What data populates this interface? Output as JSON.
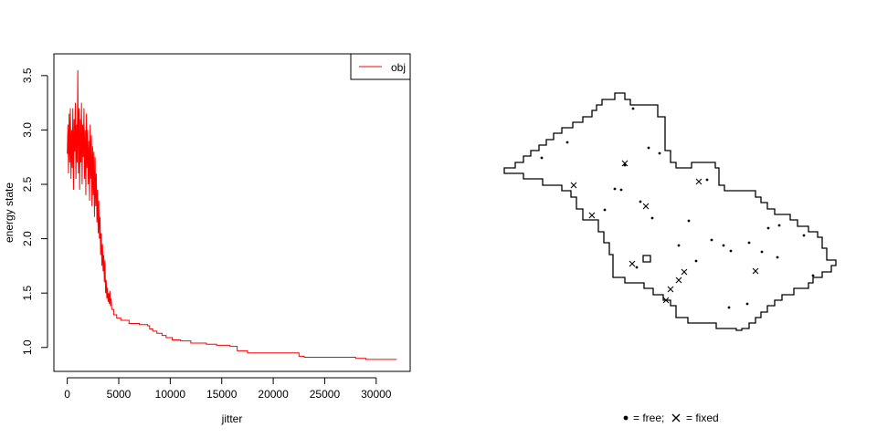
{
  "chart_data": [
    {
      "type": "line",
      "title": "",
      "xlabel": "jitter",
      "ylabel": "energy state",
      "xlim": [
        -1300,
        33300
      ],
      "ylim": [
        0.78,
        3.7
      ],
      "xticks": [
        0,
        5000,
        10000,
        15000,
        20000,
        25000,
        30000
      ],
      "yticks": [
        1.0,
        1.5,
        2.0,
        2.5,
        3.0,
        3.5
      ],
      "grid": false,
      "legend": {
        "position": "top-right",
        "entries": [
          "obj"
        ]
      },
      "series": [
        {
          "name": "obj",
          "color": "#ff0000",
          "noisy_segment": [
            [
              0,
              2.78
            ],
            [
              60,
              3.05
            ],
            [
              120,
              2.6
            ],
            [
              180,
              3.15
            ],
            [
              240,
              2.7
            ],
            [
              300,
              3.2
            ],
            [
              360,
              2.55
            ],
            [
              420,
              3.0
            ],
            [
              480,
              2.65
            ],
            [
              540,
              3.2
            ],
            [
              600,
              2.45
            ],
            [
              660,
              3.1
            ],
            [
              720,
              2.8
            ],
            [
              780,
              3.25
            ],
            [
              840,
              2.55
            ],
            [
              900,
              3.05
            ],
            [
              960,
              2.7
            ],
            [
              1020,
              3.55
            ],
            [
              1080,
              2.6
            ],
            [
              1140,
              3.2
            ],
            [
              1200,
              2.45
            ],
            [
              1260,
              3.1
            ],
            [
              1320,
              2.7
            ],
            [
              1380,
              3.25
            ],
            [
              1440,
              2.5
            ],
            [
              1500,
              3.05
            ],
            [
              1560,
              2.75
            ],
            [
              1620,
              3.2
            ],
            [
              1680,
              2.55
            ],
            [
              1740,
              3.0
            ],
            [
              1800,
              2.4
            ],
            [
              1860,
              3.15
            ],
            [
              1920,
              2.65
            ],
            [
              1980,
              3.0
            ],
            [
              2040,
              2.5
            ],
            [
              2100,
              2.9
            ],
            [
              2160,
              2.35
            ],
            [
              2220,
              3.05
            ],
            [
              2280,
              2.55
            ],
            [
              2340,
              2.95
            ],
            [
              2400,
              2.3
            ],
            [
              2460,
              2.85
            ],
            [
              2520,
              2.4
            ],
            [
              2580,
              2.8
            ],
            [
              2640,
              2.2
            ],
            [
              2700,
              2.75
            ],
            [
              2760,
              2.3
            ],
            [
              2820,
              2.6
            ],
            [
              2880,
              2.15
            ],
            [
              2940,
              2.45
            ],
            [
              3000,
              2.05
            ],
            [
              3060,
              2.35
            ],
            [
              3120,
              2.0
            ],
            [
              3180,
              2.2
            ],
            [
              3240,
              1.85
            ],
            [
              3300,
              2.05
            ],
            [
              3360,
              1.75
            ],
            [
              3420,
              1.95
            ],
            [
              3480,
              1.7
            ],
            [
              3540,
              1.85
            ],
            [
              3600,
              1.6
            ],
            [
              3660,
              1.8
            ],
            [
              3720,
              1.5
            ],
            [
              3780,
              1.62
            ],
            [
              3840,
              1.45
            ],
            [
              3900,
              1.55
            ],
            [
              3960,
              1.42
            ],
            [
              4020,
              1.5
            ],
            [
              4080,
              1.4
            ],
            [
              4140,
              1.52
            ],
            [
              4200,
              1.38
            ],
            [
              4260,
              1.45
            ],
            [
              4320,
              1.35
            ]
          ],
          "steps": [
            [
              4500,
              1.3
            ],
            [
              4800,
              1.27
            ],
            [
              5200,
              1.25
            ],
            [
              6000,
              1.22
            ],
            [
              7000,
              1.21
            ],
            [
              7800,
              1.2
            ],
            [
              8000,
              1.17
            ],
            [
              8300,
              1.15
            ],
            [
              8700,
              1.13
            ],
            [
              9200,
              1.11
            ],
            [
              9600,
              1.09
            ],
            [
              10200,
              1.07
            ],
            [
              11000,
              1.06
            ],
            [
              12000,
              1.04
            ],
            [
              13500,
              1.03
            ],
            [
              14500,
              1.02
            ],
            [
              15800,
              1.01
            ],
            [
              16500,
              0.97
            ],
            [
              17500,
              0.95
            ],
            [
              22500,
              0.92
            ],
            [
              23000,
              0.91
            ],
            [
              28000,
              0.9
            ],
            [
              29000,
              0.89
            ],
            [
              32000,
              0.89
            ]
          ]
        }
      ]
    },
    {
      "type": "scatter",
      "title": "",
      "legend": {
        "position": "bottom",
        "text_free": "= free;",
        "text_fixed": "= fixed"
      },
      "boundary": [
        [
          552,
          184
        ],
        [
          552,
          190
        ],
        [
          573,
          190
        ],
        [
          573,
          196
        ],
        [
          594,
          196
        ],
        [
          594,
          203
        ],
        [
          615,
          203
        ],
        [
          615,
          209
        ],
        [
          625,
          209
        ],
        [
          625,
          216
        ],
        [
          631,
          216
        ],
        [
          631,
          229
        ],
        [
          638,
          229
        ],
        [
          638,
          241
        ],
        [
          655,
          241
        ],
        [
          655,
          254
        ],
        [
          661,
          254
        ],
        [
          661,
          266
        ],
        [
          667,
          266
        ],
        [
          667,
          279
        ],
        [
          671,
          279
        ],
        [
          671,
          304
        ],
        [
          684,
          304
        ],
        [
          684,
          310
        ],
        [
          705,
          310
        ],
        [
          705,
          316
        ],
        [
          715,
          316
        ],
        [
          715,
          323
        ],
        [
          726,
          323
        ],
        [
          726,
          329
        ],
        [
          734,
          329
        ],
        [
          734,
          335
        ],
        [
          740,
          335
        ],
        [
          740,
          348
        ],
        [
          753,
          348
        ],
        [
          753,
          354
        ],
        [
          784,
          354
        ],
        [
          784,
          360
        ],
        [
          806,
          360
        ],
        [
          806,
          362
        ],
        [
          812,
          362
        ],
        [
          812,
          360
        ],
        [
          820,
          360
        ],
        [
          820,
          354
        ],
        [
          827,
          354
        ],
        [
          827,
          348
        ],
        [
          833,
          348
        ],
        [
          833,
          342
        ],
        [
          840,
          342
        ],
        [
          840,
          335
        ],
        [
          848,
          335
        ],
        [
          848,
          329
        ],
        [
          856,
          329
        ],
        [
          856,
          323
        ],
        [
          869,
          323
        ],
        [
          869,
          316
        ],
        [
          885,
          316
        ],
        [
          885,
          310
        ],
        [
          890,
          310
        ],
        [
          890,
          304
        ],
        [
          900,
          304
        ],
        [
          900,
          298
        ],
        [
          910,
          298
        ],
        [
          910,
          291
        ],
        [
          915,
          291
        ],
        [
          915,
          285
        ],
        [
          905,
          285
        ],
        [
          905,
          272
        ],
        [
          900,
          272
        ],
        [
          900,
          260
        ],
        [
          895,
          260
        ],
        [
          895,
          254
        ],
        [
          885,
          254
        ],
        [
          885,
          248
        ],
        [
          873,
          248
        ],
        [
          873,
          241
        ],
        [
          865,
          241
        ],
        [
          865,
          235
        ],
        [
          848,
          235
        ],
        [
          848,
          229
        ],
        [
          840,
          229
        ],
        [
          840,
          222
        ],
        [
          833,
          222
        ],
        [
          833,
          216
        ],
        [
          827,
          216
        ],
        [
          827,
          209
        ],
        [
          793,
          209
        ],
        [
          793,
          203
        ],
        [
          787,
          203
        ],
        [
          787,
          184
        ],
        [
          783,
          184
        ],
        [
          783,
          178
        ],
        [
          757,
          178
        ],
        [
          757,
          184
        ],
        [
          740,
          184
        ],
        [
          740,
          178
        ],
        [
          734,
          178
        ],
        [
          734,
          165
        ],
        [
          728,
          165
        ],
        [
          728,
          128
        ],
        [
          720,
          128
        ],
        [
          720,
          115
        ],
        [
          690,
          115
        ],
        [
          690,
          109
        ],
        [
          684,
          109
        ],
        [
          684,
          102
        ],
        [
          673,
          102
        ],
        [
          673,
          109
        ],
        [
          659,
          109
        ],
        [
          659,
          115
        ],
        [
          653,
          115
        ],
        [
          653,
          121
        ],
        [
          648,
          121
        ],
        [
          648,
          128
        ],
        [
          638,
          128
        ],
        [
          638,
          134
        ],
        [
          627,
          134
        ],
        [
          627,
          140
        ],
        [
          615,
          140
        ],
        [
          615,
          146
        ],
        [
          606,
          146
        ],
        [
          606,
          153
        ],
        [
          598,
          153
        ],
        [
          598,
          159
        ],
        [
          590,
          159
        ],
        [
          590,
          165
        ],
        [
          581,
          165
        ],
        [
          581,
          171
        ],
        [
          573,
          171
        ],
        [
          573,
          178
        ],
        [
          564,
          178
        ],
        [
          564,
          184
        ]
      ],
      "hole": [
        [
          704,
          280
        ],
        [
          712,
          280
        ],
        [
          712,
          287
        ],
        [
          704,
          287
        ]
      ],
      "free_points": [
        [
          693,
          119
        ],
        [
          621,
          156
        ],
        [
          710,
          162
        ],
        [
          722,
          168
        ],
        [
          593,
          173
        ],
        [
          684,
          181
        ],
        [
          774,
          197
        ],
        [
          673,
          207
        ],
        [
          680,
          208
        ],
        [
          701,
          221
        ],
        [
          662,
          230
        ],
        [
          714,
          239
        ],
        [
          754,
          242
        ],
        [
          841,
          250
        ],
        [
          853,
          247
        ],
        [
          880,
          258
        ],
        [
          779,
          263
        ],
        [
          743,
          269
        ],
        [
          792,
          269
        ],
        [
          820,
          266
        ],
        [
          800,
          275
        ],
        [
          834,
          276
        ],
        [
          851,
          282
        ],
        [
          762,
          286
        ],
        [
          697,
          293
        ],
        [
          890,
          302
        ],
        [
          818,
          333
        ],
        [
          798,
          337
        ]
      ],
      "fixed_points": [
        [
          684,
          179
        ],
        [
          765,
          199
        ],
        [
          628,
          203
        ],
        [
          707,
          226
        ],
        [
          648,
          236
        ],
        [
          692,
          289
        ],
        [
          749,
          298
        ],
        [
          827,
          297
        ],
        [
          743,
          307
        ],
        [
          734,
          317
        ],
        [
          729,
          329
        ]
      ]
    }
  ]
}
